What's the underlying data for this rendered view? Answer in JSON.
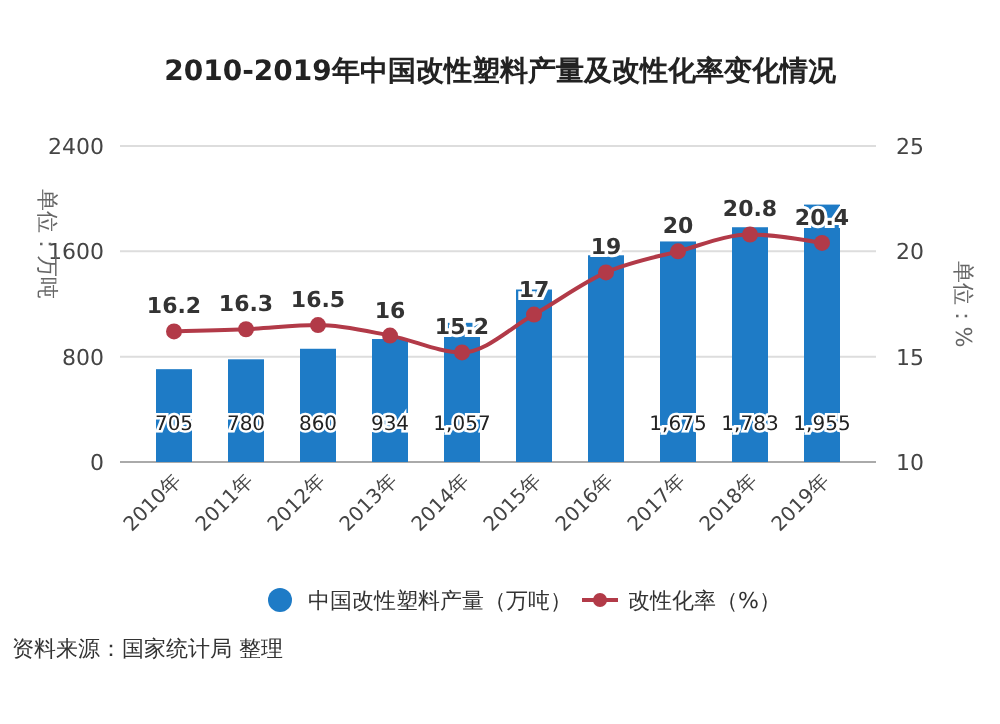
{
  "chart_data": {
    "type": "bar",
    "title": "2010-2019年中国改性塑料产量及改性化率变化情况",
    "ylabel": "单位：万吨",
    "y2label": "单位：%",
    "categories": [
      "2010年",
      "2011年",
      "2012年",
      "2013年",
      "2014年",
      "2015年",
      "2016年",
      "2017年",
      "2018年",
      "2019年"
    ],
    "series": [
      {
        "name": "中国改性塑料产量（万吨）",
        "color": "#1e7bc6",
        "values": [
          705,
          780,
          860,
          934,
          1057,
          1310,
          1570,
          1675,
          1783,
          1955
        ],
        "value_labels": [
          "705",
          "780",
          "860",
          "934",
          "1,057",
          null,
          null,
          "1,675",
          "1,783",
          "1,955"
        ]
      },
      {
        "name": "改性化率（%）",
        "type": "line",
        "axis": "y2",
        "color": "#b23a48",
        "marker": "circle",
        "data_labels": true,
        "values": [
          16.2,
          16.3,
          16.5,
          16,
          15.2,
          17,
          19,
          20,
          20.8,
          20.4
        ]
      }
    ],
    "ylim": [
      0,
      2400
    ],
    "yticks": [
      0,
      800,
      1600,
      2400
    ],
    "y2lim": [
      10,
      25
    ],
    "y2ticks": [
      10,
      15,
      20,
      25
    ],
    "grid": "y",
    "legend": "bottom",
    "annotations": [
      "资料来源：国家统计局 整理"
    ]
  }
}
